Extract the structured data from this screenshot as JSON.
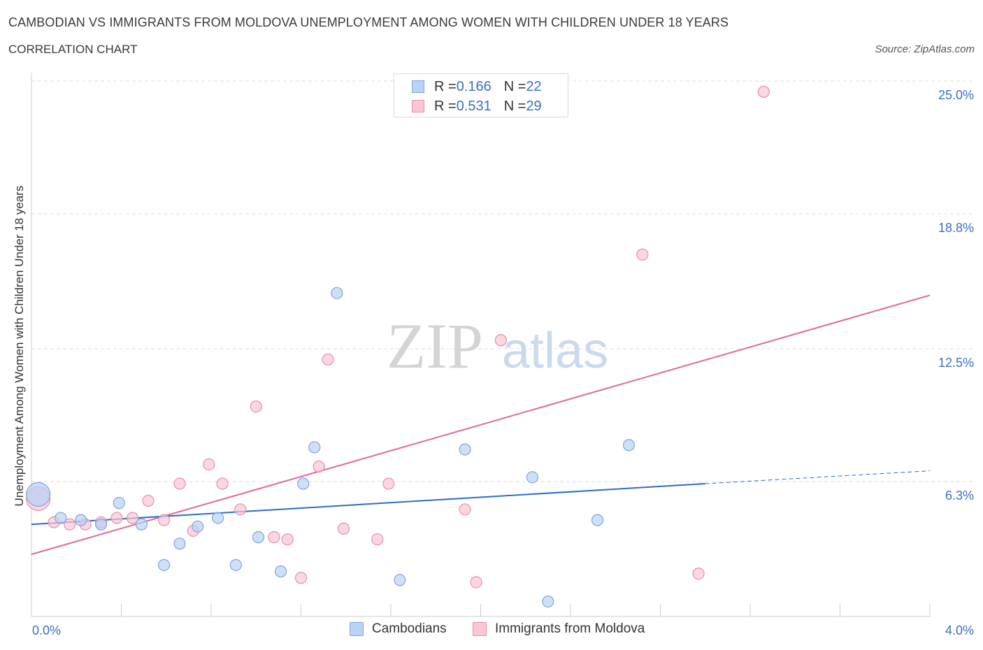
{
  "title": "CAMBODIAN VS IMMIGRANTS FROM MOLDOVA UNEMPLOYMENT AMONG WOMEN WITH CHILDREN UNDER 18 YEARS",
  "subtitle": "CORRELATION CHART",
  "source": "Source: ZipAtlas.com",
  "watermark": {
    "zip": "ZIP",
    "atlas": "atlas"
  },
  "legend": {
    "rows": [
      {
        "r_label": "R = ",
        "r_value": "0.166",
        "n_label": "N = ",
        "n_value": "22"
      },
      {
        "r_label": "R = ",
        "r_value": "0.531",
        "n_label": "N = ",
        "n_value": "29"
      }
    ]
  },
  "colors": {
    "cambodians_fill": "#b9d2f5",
    "cambodians_stroke": "#7ea6dd",
    "cambodians_line": "#2d6cc8",
    "moldova_fill": "#f9c6d4",
    "moldova_stroke": "#e48fa9",
    "moldova_line": "#e06a93",
    "grid": "#dddddd",
    "axis_text": "#3b6fc4"
  },
  "chart_data": {
    "type": "scatter",
    "title": "CAMBODIAN VS IMMIGRANTS FROM MOLDOVA UNEMPLOYMENT AMONG WOMEN WITH CHILDREN UNDER 18 YEARS",
    "subtitle": "CORRELATION CHART",
    "ylabel": "Unemployment Among Women with Children Under 18 years",
    "xlabel": "",
    "xlim": [
      0.0,
      4.0
    ],
    "ylim": [
      0.0,
      25.0
    ],
    "x_tick_labels": [
      "0.0%",
      "4.0%"
    ],
    "y_ticks": [
      6.3,
      12.5,
      18.8,
      25.0
    ],
    "y_tick_labels": [
      "6.3%",
      "12.5%",
      "18.8%",
      "25.0%"
    ],
    "grid": true,
    "legend_position": "top-center",
    "series": [
      {
        "name": "Cambodians",
        "R": 0.166,
        "N": 22,
        "trend": {
          "x": [
            0.0,
            3.0
          ],
          "y": [
            4.3,
            6.2
          ],
          "dashed_to": {
            "x": 4.0,
            "y": 6.8
          }
        },
        "points": [
          {
            "x": 0.03,
            "y": 5.7,
            "big": true
          },
          {
            "x": 0.13,
            "y": 4.6
          },
          {
            "x": 0.22,
            "y": 4.5
          },
          {
            "x": 0.31,
            "y": 4.3
          },
          {
            "x": 0.39,
            "y": 5.3
          },
          {
            "x": 0.49,
            "y": 4.3
          },
          {
            "x": 0.59,
            "y": 2.4
          },
          {
            "x": 0.66,
            "y": 3.4
          },
          {
            "x": 0.74,
            "y": 4.2
          },
          {
            "x": 0.83,
            "y": 4.6
          },
          {
            "x": 0.91,
            "y": 2.4
          },
          {
            "x": 1.01,
            "y": 3.7
          },
          {
            "x": 1.11,
            "y": 2.1
          },
          {
            "x": 1.21,
            "y": 6.2
          },
          {
            "x": 1.26,
            "y": 7.9
          },
          {
            "x": 1.36,
            "y": 15.1
          },
          {
            "x": 1.64,
            "y": 1.7
          },
          {
            "x": 1.93,
            "y": 7.8
          },
          {
            "x": 2.23,
            "y": 6.5
          },
          {
            "x": 2.3,
            "y": 0.7
          },
          {
            "x": 2.52,
            "y": 4.5
          },
          {
            "x": 2.66,
            "y": 8.0
          }
        ]
      },
      {
        "name": "Immigrants from Moldova",
        "R": 0.531,
        "N": 29,
        "trend": {
          "x": [
            0.0,
            4.0
          ],
          "y": [
            2.9,
            15.0
          ]
        },
        "points": [
          {
            "x": 0.03,
            "y": 5.5,
            "big": true
          },
          {
            "x": 0.1,
            "y": 4.4
          },
          {
            "x": 0.17,
            "y": 4.3
          },
          {
            "x": 0.24,
            "y": 4.3
          },
          {
            "x": 0.31,
            "y": 4.4
          },
          {
            "x": 0.38,
            "y": 4.6
          },
          {
            "x": 0.45,
            "y": 4.6
          },
          {
            "x": 0.52,
            "y": 5.4
          },
          {
            "x": 0.59,
            "y": 4.5
          },
          {
            "x": 0.66,
            "y": 6.2
          },
          {
            "x": 0.72,
            "y": 4.0
          },
          {
            "x": 0.79,
            "y": 7.1
          },
          {
            "x": 0.85,
            "y": 6.2
          },
          {
            "x": 0.93,
            "y": 5.0
          },
          {
            "x": 1.0,
            "y": 9.8
          },
          {
            "x": 1.08,
            "y": 3.7
          },
          {
            "x": 1.14,
            "y": 3.6
          },
          {
            "x": 1.2,
            "y": 1.8
          },
          {
            "x": 1.28,
            "y": 7.0
          },
          {
            "x": 1.32,
            "y": 12.0
          },
          {
            "x": 1.39,
            "y": 4.1
          },
          {
            "x": 1.54,
            "y": 3.6
          },
          {
            "x": 1.59,
            "y": 6.2
          },
          {
            "x": 1.93,
            "y": 5.0
          },
          {
            "x": 1.98,
            "y": 1.6
          },
          {
            "x": 2.09,
            "y": 12.9
          },
          {
            "x": 2.72,
            "y": 16.9
          },
          {
            "x": 2.97,
            "y": 2.0
          },
          {
            "x": 3.26,
            "y": 24.5
          }
        ]
      }
    ]
  }
}
